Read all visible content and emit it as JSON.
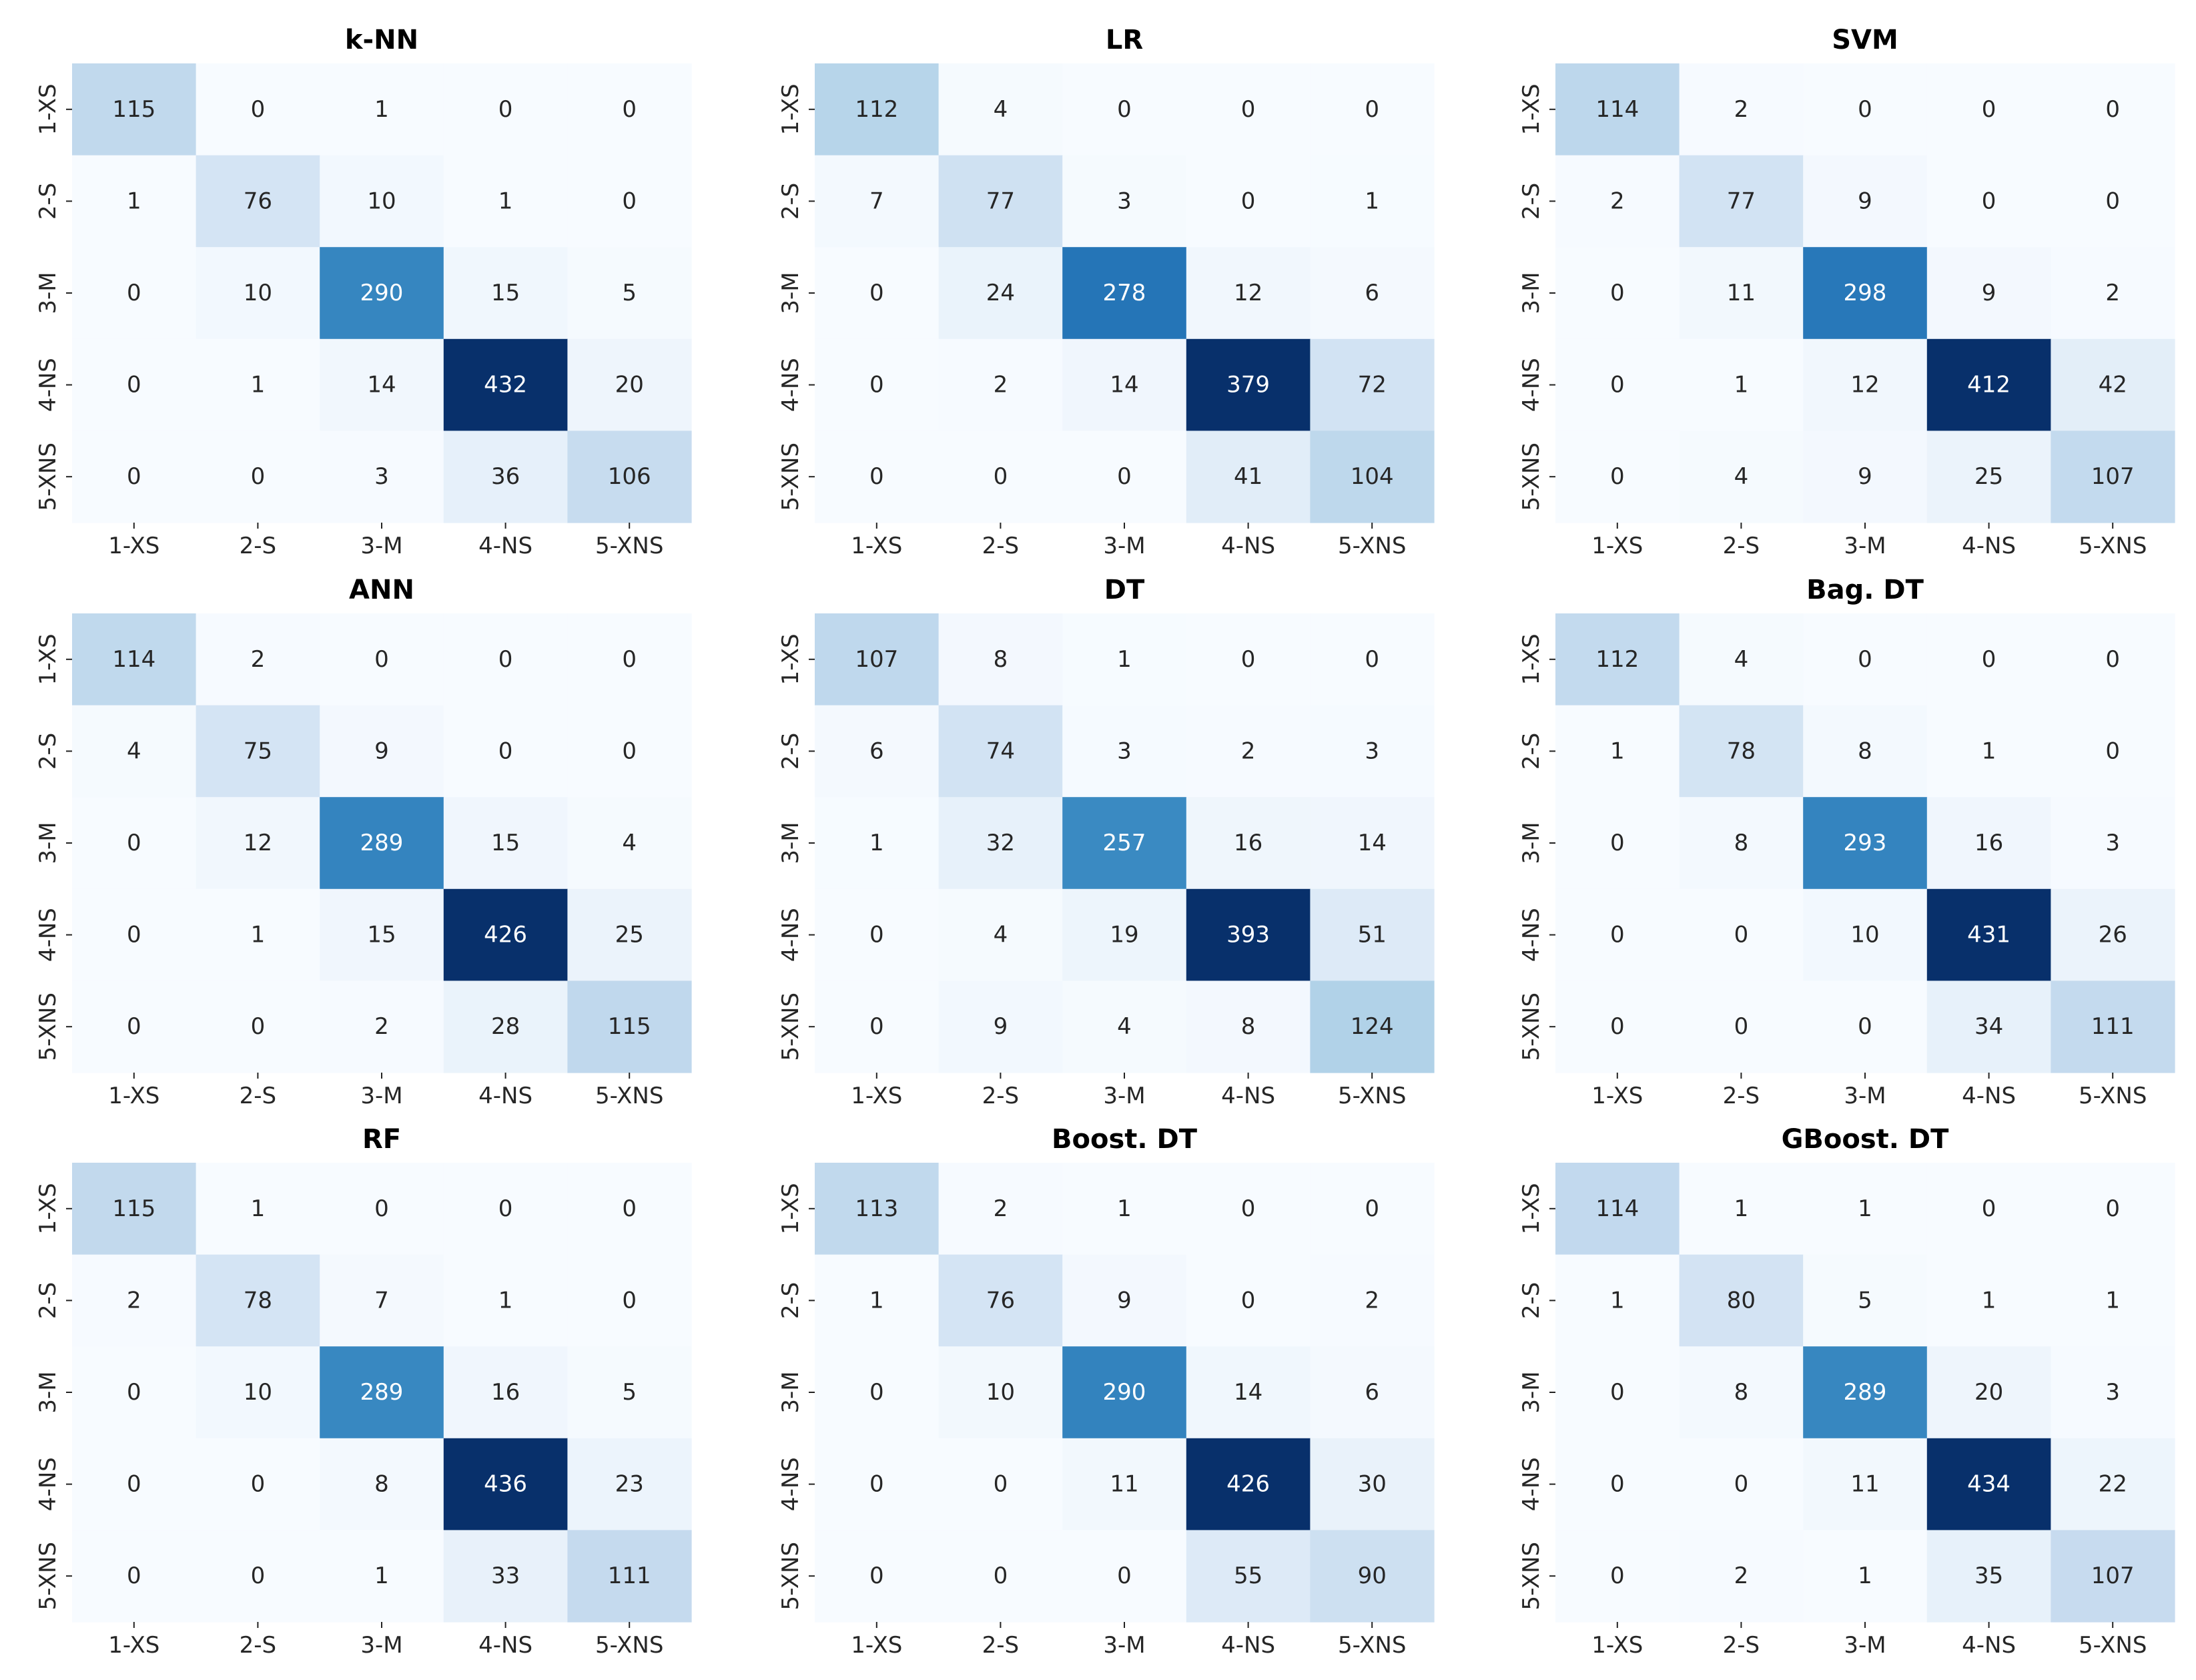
{
  "chart_data": [
    {
      "type": "heatmap",
      "title": "k-NN",
      "xlabels": [
        "1-XS",
        "2-S",
        "3-M",
        "4-NS",
        "5-XNS"
      ],
      "ylabels": [
        "1-XS",
        "2-S",
        "3-M",
        "4-NS",
        "5-XNS"
      ],
      "matrix": [
        [
          115,
          0,
          1,
          0,
          0
        ],
        [
          1,
          76,
          10,
          1,
          0
        ],
        [
          0,
          10,
          290,
          15,
          5
        ],
        [
          0,
          1,
          14,
          432,
          20
        ],
        [
          0,
          0,
          3,
          36,
          106
        ]
      ],
      "colormap": "Blues",
      "colorbar": false
    },
    {
      "type": "heatmap",
      "title": "LR",
      "xlabels": [
        "1-XS",
        "2-S",
        "3-M",
        "4-NS",
        "5-XNS"
      ],
      "ylabels": [
        "1-XS",
        "2-S",
        "3-M",
        "4-NS",
        "5-XNS"
      ],
      "matrix": [
        [
          112,
          4,
          0,
          0,
          0
        ],
        [
          7,
          77,
          3,
          0,
          1
        ],
        [
          0,
          24,
          278,
          12,
          6
        ],
        [
          0,
          2,
          14,
          379,
          72
        ],
        [
          0,
          0,
          0,
          41,
          104
        ]
      ],
      "colormap": "Blues",
      "colorbar": false
    },
    {
      "type": "heatmap",
      "title": "SVM",
      "xlabels": [
        "1-XS",
        "2-S",
        "3-M",
        "4-NS",
        "5-XNS"
      ],
      "ylabels": [
        "1-XS",
        "2-S",
        "3-M",
        "4-NS",
        "5-XNS"
      ],
      "matrix": [
        [
          114,
          2,
          0,
          0,
          0
        ],
        [
          2,
          77,
          9,
          0,
          0
        ],
        [
          0,
          11,
          298,
          9,
          2
        ],
        [
          0,
          1,
          12,
          412,
          42
        ],
        [
          0,
          4,
          9,
          25,
          107
        ]
      ],
      "colormap": "Blues",
      "colorbar": false
    },
    {
      "type": "heatmap",
      "title": "ANN",
      "xlabels": [
        "1-XS",
        "2-S",
        "3-M",
        "4-NS",
        "5-XNS"
      ],
      "ylabels": [
        "1-XS",
        "2-S",
        "3-M",
        "4-NS",
        "5-XNS"
      ],
      "matrix": [
        [
          114,
          2,
          0,
          0,
          0
        ],
        [
          4,
          75,
          9,
          0,
          0
        ],
        [
          0,
          12,
          289,
          15,
          4
        ],
        [
          0,
          1,
          15,
          426,
          25
        ],
        [
          0,
          0,
          2,
          28,
          115
        ]
      ],
      "colormap": "Blues",
      "colorbar": false
    },
    {
      "type": "heatmap",
      "title": "DT",
      "xlabels": [
        "1-XS",
        "2-S",
        "3-M",
        "4-NS",
        "5-XNS"
      ],
      "ylabels": [
        "1-XS",
        "2-S",
        "3-M",
        "4-NS",
        "5-XNS"
      ],
      "matrix": [
        [
          107,
          8,
          1,
          0,
          0
        ],
        [
          6,
          74,
          3,
          2,
          3
        ],
        [
          1,
          32,
          257,
          16,
          14
        ],
        [
          0,
          4,
          19,
          393,
          51
        ],
        [
          0,
          9,
          4,
          8,
          124
        ]
      ],
      "colormap": "Blues",
      "colorbar": false
    },
    {
      "type": "heatmap",
      "title": "Bag. DT",
      "xlabels": [
        "1-XS",
        "2-S",
        "3-M",
        "4-NS",
        "5-XNS"
      ],
      "ylabels": [
        "1-XS",
        "2-S",
        "3-M",
        "4-NS",
        "5-XNS"
      ],
      "matrix": [
        [
          112,
          4,
          0,
          0,
          0
        ],
        [
          1,
          78,
          8,
          1,
          0
        ],
        [
          0,
          8,
          293,
          16,
          3
        ],
        [
          0,
          0,
          10,
          431,
          26
        ],
        [
          0,
          0,
          0,
          34,
          111
        ]
      ],
      "colormap": "Blues",
      "colorbar": false
    },
    {
      "type": "heatmap",
      "title": "RF",
      "xlabels": [
        "1-XS",
        "2-S",
        "3-M",
        "4-NS",
        "5-XNS"
      ],
      "ylabels": [
        "1-XS",
        "2-S",
        "3-M",
        "4-NS",
        "5-XNS"
      ],
      "matrix": [
        [
          115,
          1,
          0,
          0,
          0
        ],
        [
          2,
          78,
          7,
          1,
          0
        ],
        [
          0,
          10,
          289,
          16,
          5
        ],
        [
          0,
          0,
          8,
          436,
          23
        ],
        [
          0,
          0,
          1,
          33,
          111
        ]
      ],
      "colormap": "Blues",
      "colorbar": false
    },
    {
      "type": "heatmap",
      "title": "Boost. DT",
      "xlabels": [
        "1-XS",
        "2-S",
        "3-M",
        "4-NS",
        "5-XNS"
      ],
      "ylabels": [
        "1-XS",
        "2-S",
        "3-M",
        "4-NS",
        "5-XNS"
      ],
      "matrix": [
        [
          113,
          2,
          1,
          0,
          0
        ],
        [
          1,
          76,
          9,
          0,
          2
        ],
        [
          0,
          10,
          290,
          14,
          6
        ],
        [
          0,
          0,
          11,
          426,
          30
        ],
        [
          0,
          0,
          0,
          55,
          90
        ]
      ],
      "colormap": "Blues",
      "colorbar": false
    },
    {
      "type": "heatmap",
      "title": "GBoost. DT",
      "xlabels": [
        "1-XS",
        "2-S",
        "3-M",
        "4-NS",
        "5-XNS"
      ],
      "ylabels": [
        "1-XS",
        "2-S",
        "3-M",
        "4-NS",
        "5-XNS"
      ],
      "matrix": [
        [
          114,
          1,
          1,
          0,
          0
        ],
        [
          1,
          80,
          5,
          1,
          1
        ],
        [
          0,
          8,
          289,
          20,
          3
        ],
        [
          0,
          0,
          11,
          434,
          22
        ],
        [
          0,
          2,
          1,
          35,
          107
        ]
      ],
      "colormap": "Blues",
      "colorbar": false
    }
  ]
}
